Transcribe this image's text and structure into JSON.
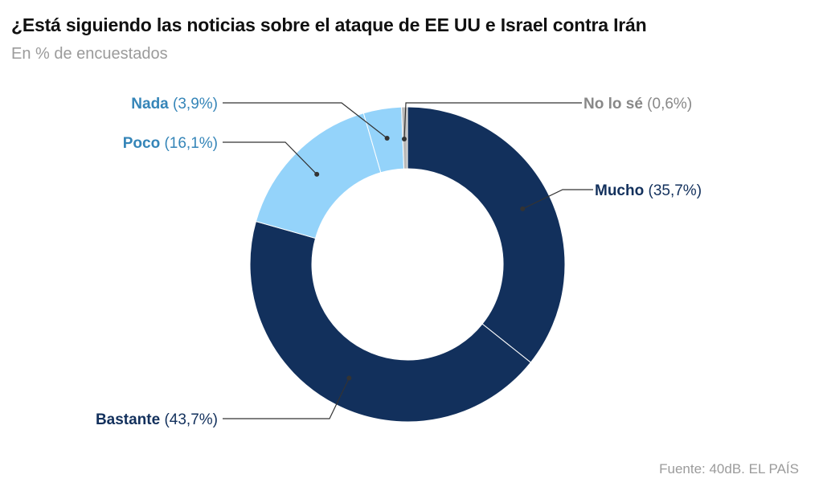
{
  "title": "¿Está siguiendo las noticias sobre el ataque de EE UU e Israel contra Irán",
  "subtitle": "En % de encuestados",
  "source": "Fuente: 40dB. EL PAÍS",
  "colors": {
    "dark_navy": "#12305c",
    "light_blue": "#94d3fa",
    "label_blue": "#3585b8",
    "label_gray": "#888888"
  },
  "chart_data": {
    "type": "pie",
    "donut": true,
    "title": "¿Está siguiendo las noticias sobre el ataque de EE UU e Israel contra Irán",
    "subtitle": "En % de encuestados",
    "slices": [
      {
        "name": "Mucho",
        "value": 35.7,
        "value_label": "(35,7%)",
        "color": "#12305c",
        "label_color": "#12305c"
      },
      {
        "name": "Bastante",
        "value": 43.7,
        "value_label": "(43,7%)",
        "color": "#12305c",
        "label_color": "#12305c"
      },
      {
        "name": "Poco",
        "value": 16.1,
        "value_label": "(16,1%)",
        "color": "#94d3fa",
        "label_color": "#3585b8"
      },
      {
        "name": "Nada",
        "value": 3.9,
        "value_label": "(3,9%)",
        "color": "#94d3fa",
        "label_color": "#3585b8"
      },
      {
        "name": "No lo sé",
        "value": 0.6,
        "value_label": "(0,6%)",
        "color": "#b9b9b9",
        "label_color": "#888888"
      }
    ]
  }
}
